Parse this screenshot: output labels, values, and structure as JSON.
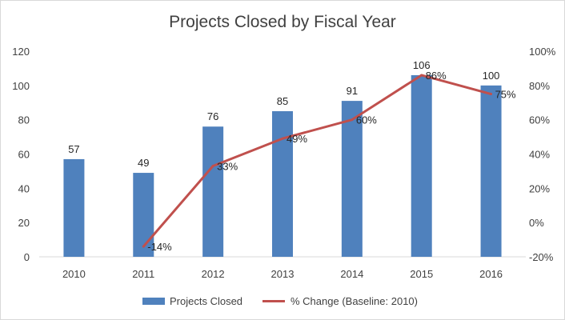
{
  "chart_data": {
    "type": "bar",
    "title": "Projects Closed by Fiscal Year",
    "categories": [
      "2010",
      "2011",
      "2012",
      "2013",
      "2014",
      "2015",
      "2016"
    ],
    "series": [
      {
        "name": "Projects Closed",
        "type": "bar",
        "axis": "left",
        "values": [
          57,
          49,
          76,
          85,
          91,
          106,
          100
        ],
        "labels": [
          "57",
          "49",
          "76",
          "85",
          "91",
          "106",
          "100"
        ],
        "color": "#4f81bd"
      },
      {
        "name": "% Change (Baseline: 2010)",
        "type": "line",
        "axis": "right",
        "values": [
          null,
          -14,
          33,
          49,
          60,
          86,
          75
        ],
        "labels": [
          "",
          "-14%",
          "33%",
          "49%",
          "60%",
          "86%",
          "75%"
        ],
        "color": "#c0504d"
      }
    ],
    "y_left": {
      "lim": [
        0,
        120
      ],
      "ticks": [
        "0",
        "20",
        "40",
        "60",
        "80",
        "100",
        "120"
      ]
    },
    "y_right": {
      "lim": [
        -20,
        100
      ],
      "ticks": [
        "-20%",
        "0%",
        "20%",
        "40%",
        "60%",
        "80%",
        "100%"
      ]
    },
    "grid": false,
    "legend_position": "bottom"
  }
}
